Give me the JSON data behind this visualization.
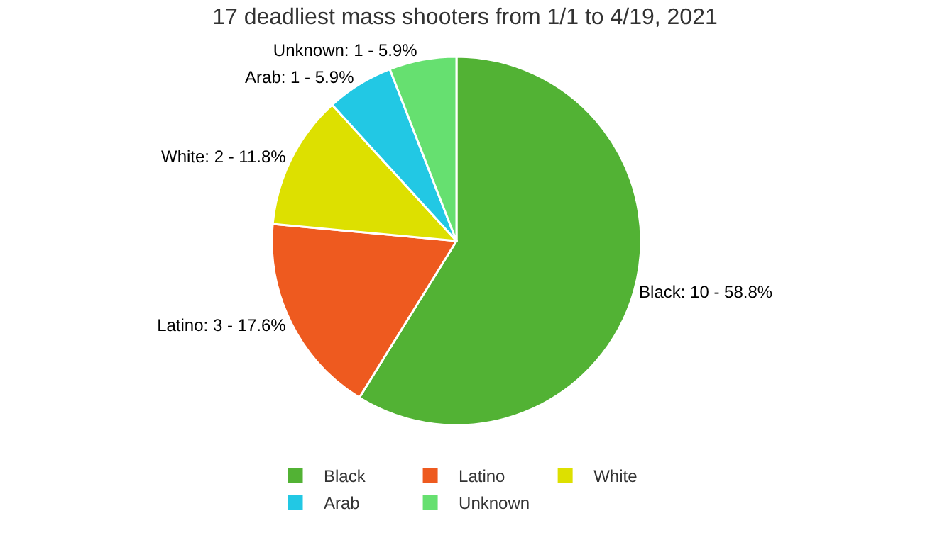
{
  "chart_data": {
    "type": "pie",
    "title": "17 deadliest mass shooters from 1/1 to 4/19, 2021",
    "categories": [
      "Black",
      "Latino",
      "White",
      "Arab",
      "Unknown"
    ],
    "values": [
      10,
      3,
      2,
      1,
      1
    ],
    "colors": [
      "#52b234",
      "#ee5a1f",
      "#dde000",
      "#22c8e4",
      "#66e070"
    ],
    "value_labels": [
      "Black: 10 - 58.8%",
      "Latino: 3 - 17.6%",
      "White: 2 - 11.8%",
      "Arab: 1 - 5.9%",
      "Unknown: 1 - 5.9%"
    ],
    "legend": "bottom"
  }
}
